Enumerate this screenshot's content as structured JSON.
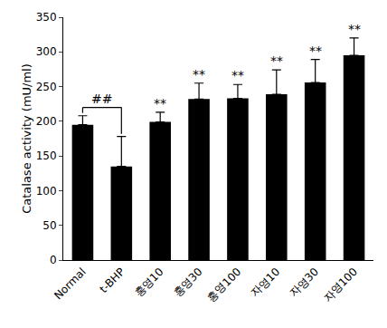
{
  "chart_data": {
    "type": "bar",
    "y_label": "Catalase activity (mU/ml)",
    "categories": [
      "Normal",
      "t-BHP",
      "홍영10",
      "홍영30",
      "홍영100",
      "자영10",
      "자영30",
      "자영100"
    ],
    "values": [
      195,
      135,
      199,
      232,
      233,
      239,
      256,
      295
    ],
    "errors": [
      13,
      43,
      14,
      23,
      20,
      35,
      33,
      25
    ],
    "color": "#000000",
    "ylim": [
      0,
      350
    ],
    "yticks": [
      0,
      50,
      100,
      150,
      200,
      250,
      300,
      350
    ],
    "grid": false,
    "annotations": [
      {
        "text": "##",
        "between": [
          "Normal",
          "t-BHP"
        ]
      },
      {
        "text": "**",
        "category": "홍영10"
      },
      {
        "text": "**",
        "category": "홍영30"
      },
      {
        "text": "**",
        "category": "홍영100"
      },
      {
        "text": "**",
        "category": "자영10"
      },
      {
        "text": "**",
        "category": "자영30"
      },
      {
        "text": "**",
        "category": "자영100"
      }
    ]
  }
}
